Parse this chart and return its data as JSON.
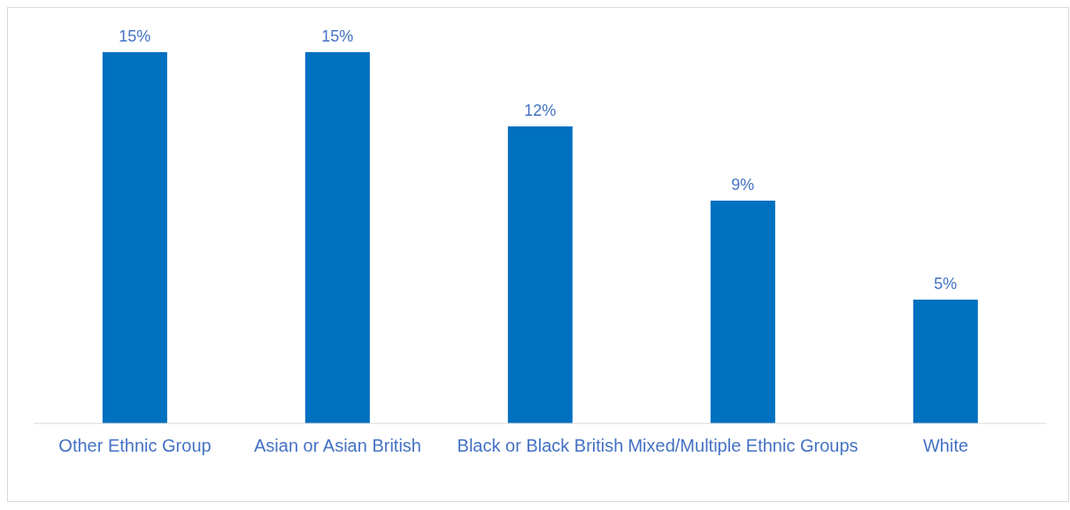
{
  "chart_data": {
    "type": "bar",
    "categories": [
      "Other Ethnic Group",
      "Asian or Asian British",
      "Black or Black British",
      "Mixed/Multiple Ethnic Groups",
      "White"
    ],
    "values": [
      15,
      15,
      12,
      9,
      5
    ],
    "value_labels": [
      "15%",
      "15%",
      "12%",
      "9%",
      "5%"
    ],
    "color": "#0070c0"
  }
}
